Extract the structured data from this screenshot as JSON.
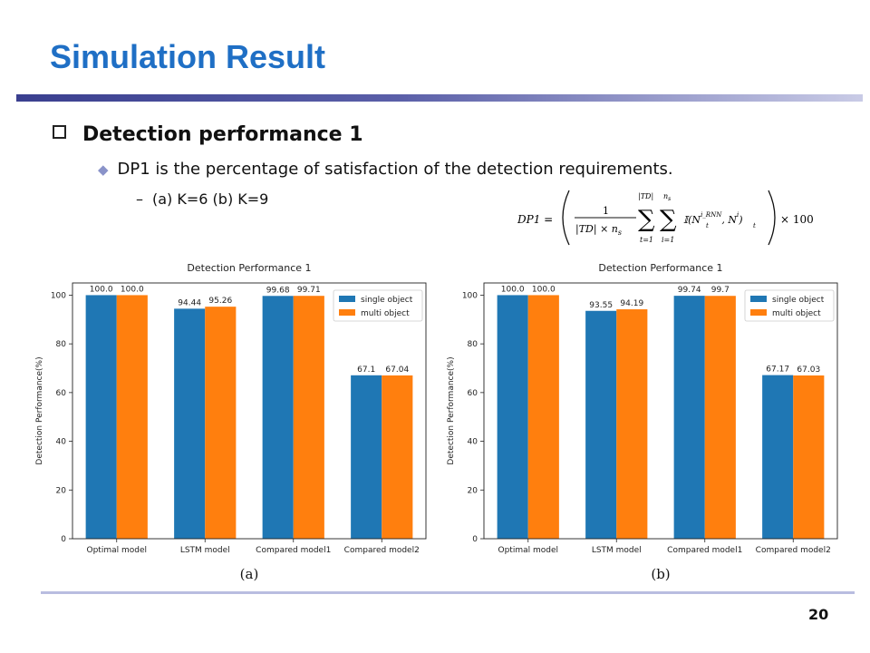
{
  "slide": {
    "title": "Simulation Result",
    "bullet1": "Detection performance 1",
    "bullet2": "DP1 is the percentage of satisfaction of the detection requirements.",
    "bullet3": "(a) K=6 (b) K=9",
    "page_number": "20"
  },
  "formula": {
    "lhs": "DP1 =",
    "numerator": "1",
    "denominator": "|TD| × n",
    "denominator_sub": "s",
    "sum1_top": "|TD|",
    "sum1_bottom": "t=1",
    "sum2_top": "n",
    "sum2_top_sub": "s",
    "sum2_bottom": "i=1",
    "indicator": "𝕀(N",
    "term1_sup": "i_RNN",
    "term1_sub": "t",
    "comma": ", N",
    "term2_sup": "i",
    "term2_sub": "t",
    "close": ")",
    "times": "× 100"
  },
  "colors": {
    "title": "#1f6fc5",
    "single": "#1f77b4",
    "multi": "#ff7f0e"
  },
  "chart_data": [
    {
      "type": "bar",
      "title": "Detection Performance 1",
      "caption": "(a)",
      "ylabel": "Detection Performance(%)",
      "xlabel": "",
      "ylim": [
        0,
        105
      ],
      "yticks": [
        0,
        20,
        40,
        60,
        80,
        100
      ],
      "legend": "top-right",
      "categories": [
        "Optimal model",
        "LSTM model",
        "Compared model1",
        "Compared model2"
      ],
      "series": [
        {
          "name": "single object",
          "values": [
            100.0,
            94.44,
            99.68,
            67.1
          ],
          "labels": [
            "100.0",
            "94.44",
            "99.68",
            "67.1"
          ]
        },
        {
          "name": "multi object",
          "values": [
            100.0,
            95.26,
            99.71,
            67.04
          ],
          "labels": [
            "100.0",
            "95.26",
            "99.71",
            "67.04"
          ]
        }
      ]
    },
    {
      "type": "bar",
      "title": "Detection Performance 1",
      "caption": "(b)",
      "ylabel": "Detection Performance(%)",
      "xlabel": "",
      "ylim": [
        0,
        105
      ],
      "yticks": [
        0,
        20,
        40,
        60,
        80,
        100
      ],
      "legend": "top-right",
      "categories": [
        "Optimal model",
        "LSTM model",
        "Compared model1",
        "Compared model2"
      ],
      "series": [
        {
          "name": "single object",
          "values": [
            100.0,
            93.55,
            99.74,
            67.17
          ],
          "labels": [
            "100.0",
            "93.55",
            "99.74",
            "67.17"
          ]
        },
        {
          "name": "multi object",
          "values": [
            100.0,
            94.19,
            99.7,
            67.03
          ],
          "labels": [
            "100.0",
            "94.19",
            "99.7",
            "67.03"
          ]
        }
      ]
    }
  ]
}
